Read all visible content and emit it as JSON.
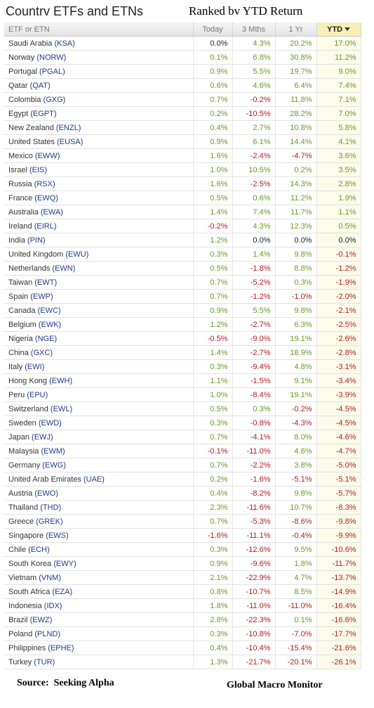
{
  "title": "Countrv ETFs and ETNs",
  "subtitle": "Ranked bv YTD Return",
  "columns": {
    "name": "ETF or ETN",
    "today": "Today",
    "three_mths": "3 Mths",
    "one_yr": "1 Yr",
    "ytd": "YTD"
  },
  "sort": {
    "column": "ytd",
    "direction": "descending"
  },
  "colors": {
    "positive": "#6a9b22",
    "negative": "#b4201d",
    "header_highlight": "#f6f0b6",
    "ticker": "#223a8c"
  },
  "rows": [
    {
      "country": "Saudi Arabia",
      "ticker": "KSA",
      "today": "0.0%",
      "three_mths": "4.3%",
      "one_yr": "20.2%",
      "ytd": "17.0%"
    },
    {
      "country": "Norway",
      "ticker": "NORW",
      "today": "0.1%",
      "three_mths": "6.8%",
      "one_yr": "30.8%",
      "ytd": "11.2%"
    },
    {
      "country": "Portugal",
      "ticker": "PGAL",
      "today": "0.9%",
      "three_mths": "5.5%",
      "one_yr": "19.7%",
      "ytd": "9.0%"
    },
    {
      "country": "Qatar",
      "ticker": "QAT",
      "today": "0.6%",
      "three_mths": "4.6%",
      "one_yr": "6.4%",
      "ytd": "7.4%"
    },
    {
      "country": "Colombia",
      "ticker": "GXG",
      "today": "0.7%",
      "three_mths": "-0.2%",
      "one_yr": "11.8%",
      "ytd": "7.1%"
    },
    {
      "country": "Egypt",
      "ticker": "EGPT",
      "today": "0.2%",
      "three_mths": "-10.5%",
      "one_yr": "28.2%",
      "ytd": "7.0%"
    },
    {
      "country": "New Zealand",
      "ticker": "ENZL",
      "today": "0.4%",
      "three_mths": "2.7%",
      "one_yr": "10.8%",
      "ytd": "5.8%"
    },
    {
      "country": "United States",
      "ticker": "EUSA",
      "today": "0.9%",
      "three_mths": "6.1%",
      "one_yr": "14.4%",
      "ytd": "4.1%"
    },
    {
      "country": "Mexico",
      "ticker": "EWW",
      "today": "1.6%",
      "three_mths": "-2.4%",
      "one_yr": "-4.7%",
      "ytd": "3.6%"
    },
    {
      "country": "Israel",
      "ticker": "EIS",
      "today": "1.0%",
      "three_mths": "10.5%",
      "one_yr": "0.2%",
      "ytd": "3.5%"
    },
    {
      "country": "Russia",
      "ticker": "RSX",
      "today": "1.6%",
      "three_mths": "-2.5%",
      "one_yr": "14.3%",
      "ytd": "2.8%"
    },
    {
      "country": "France",
      "ticker": "EWQ",
      "today": "0.5%",
      "three_mths": "0.6%",
      "one_yr": "11.2%",
      "ytd": "1.9%"
    },
    {
      "country": "Australia",
      "ticker": "EWA",
      "today": "1.4%",
      "three_mths": "7.4%",
      "one_yr": "11.7%",
      "ytd": "1.1%"
    },
    {
      "country": "Ireland",
      "ticker": "EIRL",
      "today": "-0.2%",
      "three_mths": "4.3%",
      "one_yr": "12.3%",
      "ytd": "0.5%"
    },
    {
      "country": "India",
      "ticker": "PIN",
      "today": "1.2%",
      "three_mths": "0.0%",
      "one_yr": "0.0%",
      "ytd": "0.0%"
    },
    {
      "country": "United Kingdom",
      "ticker": "EWU",
      "today": "0.3%",
      "three_mths": "1.4%",
      "one_yr": "9.8%",
      "ytd": "-0.1%"
    },
    {
      "country": "Netherlands",
      "ticker": "EWN",
      "today": "0.5%",
      "three_mths": "-1.8%",
      "one_yr": "8.8%",
      "ytd": "-1.2%"
    },
    {
      "country": "Taiwan",
      "ticker": "EWT",
      "today": "0.7%",
      "three_mths": "-5.2%",
      "one_yr": "0.3%",
      "ytd": "-1.9%"
    },
    {
      "country": "Spain",
      "ticker": "EWP",
      "today": "0.7%",
      "three_mths": "-1.2%",
      "one_yr": "-1.0%",
      "ytd": "-2.0%"
    },
    {
      "country": "Canada",
      "ticker": "EWC",
      "today": "0.9%",
      "three_mths": "5.5%",
      "one_yr": "9.8%",
      "ytd": "-2.1%"
    },
    {
      "country": "Belgium",
      "ticker": "EWK",
      "today": "1.2%",
      "three_mths": "-2.7%",
      "one_yr": "6.3%",
      "ytd": "-2.5%"
    },
    {
      "country": "Nigeria",
      "ticker": "NGE",
      "today": "-0.5%",
      "three_mths": "-9.0%",
      "one_yr": "19.1%",
      "ytd": "-2.6%"
    },
    {
      "country": "China",
      "ticker": "GXC",
      "today": "1.4%",
      "three_mths": "-2.7%",
      "one_yr": "18.9%",
      "ytd": "-2.8%"
    },
    {
      "country": "Italy",
      "ticker": "EWI",
      "today": "0.3%",
      "three_mths": "-9.4%",
      "one_yr": "4.8%",
      "ytd": "-3.1%"
    },
    {
      "country": "Hong Kong",
      "ticker": "EWH",
      "today": "1.1%",
      "three_mths": "-1.5%",
      "one_yr": "9.1%",
      "ytd": "-3.4%"
    },
    {
      "country": "Peru",
      "ticker": "EPU",
      "today": "1.0%",
      "three_mths": "-8.4%",
      "one_yr": "19.1%",
      "ytd": "-3.9%"
    },
    {
      "country": "Switzerland",
      "ticker": "EWL",
      "today": "0.5%",
      "three_mths": "0.3%",
      "one_yr": "-0.2%",
      "ytd": "-4.5%"
    },
    {
      "country": "Sweden",
      "ticker": "EWD",
      "today": "0.3%",
      "three_mths": "-0.8%",
      "one_yr": "-4.3%",
      "ytd": "-4.5%"
    },
    {
      "country": "Japan",
      "ticker": "EWJ",
      "today": "0.7%",
      "three_mths": "-4.1%",
      "one_yr": "8.0%",
      "ytd": "-4.6%"
    },
    {
      "country": "Malaysia",
      "ticker": "EWM",
      "today": "-0.1%",
      "three_mths": "-11.0%",
      "one_yr": "4.6%",
      "ytd": "-4.7%"
    },
    {
      "country": "Germany",
      "ticker": "EWG",
      "today": "0.7%",
      "three_mths": "-2.2%",
      "one_yr": "3.8%",
      "ytd": "-5.0%"
    },
    {
      "country": "United Arab Emirates",
      "ticker": "UAE",
      "today": "0.2%",
      "three_mths": "-1.6%",
      "one_yr": "-5.1%",
      "ytd": "-5.1%"
    },
    {
      "country": "Austria",
      "ticker": "EWO",
      "today": "0.4%",
      "three_mths": "-8.2%",
      "one_yr": "9.8%",
      "ytd": "-5.7%"
    },
    {
      "country": "Thailand",
      "ticker": "THD",
      "today": "2.3%",
      "three_mths": "-11.6%",
      "one_yr": "10.7%",
      "ytd": "-8.3%"
    },
    {
      "country": "Greece",
      "ticker": "GREK",
      "today": "0.7%",
      "three_mths": "-5.3%",
      "one_yr": "-8.6%",
      "ytd": "-9.8%"
    },
    {
      "country": "Singapore",
      "ticker": "EWS",
      "today": "-1.6%",
      "three_mths": "-11.1%",
      "one_yr": "-0.4%",
      "ytd": "-9.9%"
    },
    {
      "country": "Chile",
      "ticker": "ECH",
      "today": "0.3%",
      "three_mths": "-12.6%",
      "one_yr": "9.5%",
      "ytd": "-10.6%"
    },
    {
      "country": "South Korea",
      "ticker": "EWY",
      "today": "0.9%",
      "three_mths": "-9.6%",
      "one_yr": "1.8%",
      "ytd": "-11.7%"
    },
    {
      "country": "Vietnam",
      "ticker": "VNM",
      "today": "2.1%",
      "three_mths": "-22.9%",
      "one_yr": "4.7%",
      "ytd": "-13.7%"
    },
    {
      "country": "South Africa",
      "ticker": "EZA",
      "today": "0.8%",
      "three_mths": "-10.7%",
      "one_yr": "8.5%",
      "ytd": "-14.9%"
    },
    {
      "country": "Indonesia",
      "ticker": "IDX",
      "today": "1.8%",
      "three_mths": "-11.0%",
      "one_yr": "-11.0%",
      "ytd": "-16.4%"
    },
    {
      "country": "Brazil",
      "ticker": "EWZ",
      "today": "2.8%",
      "three_mths": "-22.3%",
      "one_yr": "0.1%",
      "ytd": "-16.6%"
    },
    {
      "country": "Poland",
      "ticker": "PLND",
      "today": "0.3%",
      "three_mths": "-10.8%",
      "one_yr": "-7.0%",
      "ytd": "-17.7%"
    },
    {
      "country": "Philippines",
      "ticker": "EPHE",
      "today": "0.4%",
      "three_mths": "-10.4%",
      "one_yr": "-15.4%",
      "ytd": "-21.6%"
    },
    {
      "country": "Turkey",
      "ticker": "TUR",
      "today": "1.3%",
      "three_mths": "-21.7%",
      "one_yr": "-20.1%",
      "ytd": "-26.1%"
    }
  ],
  "footer": {
    "source": "Source:  Seeking Alpha",
    "credit": "Global Macro Monitor"
  }
}
